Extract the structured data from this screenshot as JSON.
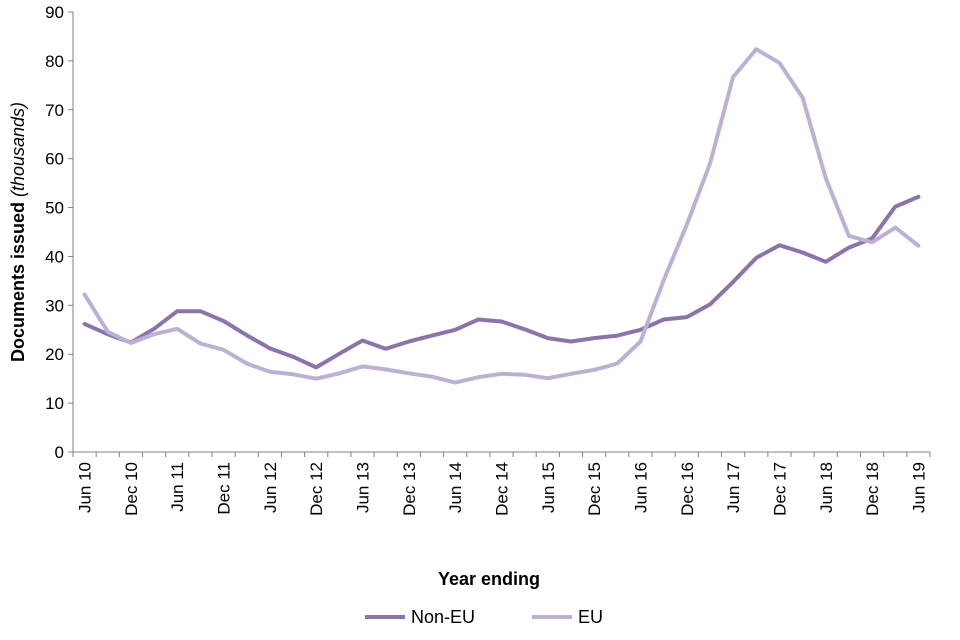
{
  "chart_data": {
    "type": "line",
    "title": "",
    "xlabel": "Year ending",
    "ylabel_main": "Documents issued",
    "ylabel_unit": "(thousands)",
    "ylim": [
      0,
      90
    ],
    "yticks": [
      0,
      10,
      20,
      30,
      40,
      50,
      60,
      70,
      80,
      90
    ],
    "grid": false,
    "legend_position": "bottom",
    "categories": [
      "Jun 10",
      "Sep 10",
      "Dec 10",
      "Mar 11",
      "Jun 11",
      "Sep 11",
      "Dec 11",
      "Mar 12",
      "Jun 12",
      "Sep 12",
      "Dec 12",
      "Mar 13",
      "Jun 13",
      "Sep 13",
      "Dec 13",
      "Mar 14",
      "Jun 14",
      "Sep 14",
      "Dec 14",
      "Mar 15",
      "Jun 15",
      "Sep 15",
      "Dec 15",
      "Mar 16",
      "Jun 16",
      "Sep 16",
      "Dec 16",
      "Mar 17",
      "Jun 17",
      "Sep 17",
      "Dec 17",
      "Mar 18",
      "Jun 18",
      "Sep 18",
      "Dec 18",
      "Mar 19",
      "Jun 19"
    ],
    "tick_labels": [
      "Jun 10",
      "Dec 10",
      "Jun 11",
      "Dec 11",
      "Jun 12",
      "Dec 12",
      "Jun 13",
      "Dec 13",
      "Jun 14",
      "Dec 14",
      "Jun 15",
      "Dec 15",
      "Jun 16",
      "Dec 16",
      "Jun 17",
      "Dec 17",
      "Jun 18",
      "Dec 18",
      "Jun 19"
    ],
    "series": [
      {
        "name": "Non-EU",
        "color": "#8b74ad",
        "values": [
          26.2,
          24.1,
          22.4,
          25.2,
          28.8,
          28.8,
          26.8,
          23.9,
          21.2,
          19.5,
          17.3,
          20.1,
          22.8,
          21.1,
          22.6,
          23.8,
          25.0,
          27.1,
          26.7,
          25.1,
          23.3,
          22.6,
          23.3,
          23.8,
          25.0,
          27.1,
          27.6,
          30.2,
          34.8,
          39.7,
          42.3,
          40.8,
          38.9,
          41.8,
          43.7,
          50.2,
          52.2
        ]
      },
      {
        "name": "EU",
        "color": "#bcb1d5",
        "values": [
          32.2,
          24.6,
          22.3,
          24.1,
          25.2,
          22.2,
          20.9,
          18.1,
          16.4,
          15.9,
          15.0,
          16.1,
          17.5,
          16.9,
          16.1,
          15.4,
          14.2,
          15.3,
          16.0,
          15.8,
          15.1,
          16.0,
          16.8,
          18.1,
          22.6,
          35.1,
          46.5,
          59.0,
          76.7,
          82.4,
          79.6,
          72.5,
          56.0,
          44.2,
          42.9,
          45.9,
          42.2
        ]
      }
    ]
  }
}
